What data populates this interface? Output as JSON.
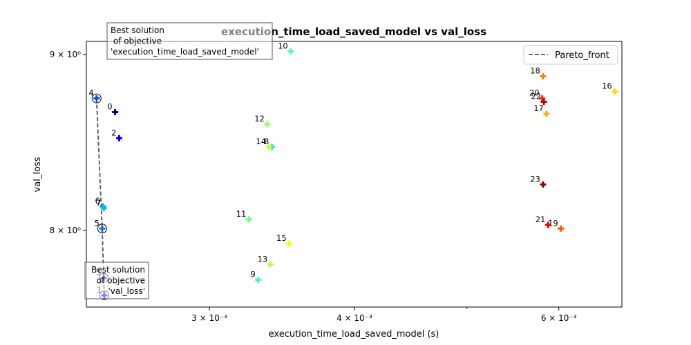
{
  "chart_data": {
    "type": "scatter",
    "title": "execution_time_load_saved_model vs val_loss",
    "xlabel": "execution_time_load_saved_model (s)",
    "ylabel": "val_loss",
    "xscale": "log",
    "yscale": "log",
    "xlim": [
      0.00235,
      0.0068
    ],
    "ylim": [
      7.6,
      9.08
    ],
    "x_ticks": [
      {
        "value": 0.003,
        "label": "3 × 10⁻³"
      },
      {
        "value": 0.004,
        "label": "4 × 10⁻³"
      },
      {
        "value": 0.006,
        "label": "6 × 10⁻³"
      }
    ],
    "x_minor_ticks": [
      0.005
    ],
    "y_ticks": [
      {
        "value": 8.0,
        "label": "8 × 10⁰"
      },
      {
        "value": 9.0,
        "label": "9 × 10⁰"
      }
    ],
    "colormap": "jet",
    "points": [
      {
        "id": "0",
        "x": 0.002488,
        "y": 8.66
      },
      {
        "id": "1",
        "x": 0.002435,
        "y": 7.66
      },
      {
        "id": "2",
        "x": 0.002508,
        "y": 8.51
      },
      {
        "id": "3",
        "x": 0.002432,
        "y": 7.75
      },
      {
        "id": "4",
        "x": 0.002398,
        "y": 8.74
      },
      {
        "id": "5",
        "x": 0.002425,
        "y": 8.01
      },
      {
        "id": "6",
        "x": 0.002428,
        "y": 8.13
      },
      {
        "id": "7",
        "x": 0.002433,
        "y": 8.12
      },
      {
        "id": "8",
        "x": 0.003395,
        "y": 8.46
      },
      {
        "id": "9",
        "x": 0.003305,
        "y": 7.74
      },
      {
        "id": "10",
        "x": 0.003525,
        "y": 9.02
      },
      {
        "id": "11",
        "x": 0.003245,
        "y": 8.06
      },
      {
        "id": "12",
        "x": 0.003365,
        "y": 8.59
      },
      {
        "id": "13",
        "x": 0.003385,
        "y": 7.82
      },
      {
        "id": "14",
        "x": 0.003375,
        "y": 8.46
      },
      {
        "id": "15",
        "x": 0.003515,
        "y": 7.93
      },
      {
        "id": "16",
        "x": 0.006705,
        "y": 8.78
      },
      {
        "id": "17",
        "x": 0.005855,
        "y": 8.65
      },
      {
        "id": "18",
        "x": 0.005815,
        "y": 8.87
      },
      {
        "id": "19",
        "x": 0.006025,
        "y": 8.01
      },
      {
        "id": "20",
        "x": 0.005805,
        "y": 8.74
      },
      {
        "id": "21",
        "x": 0.005875,
        "y": 8.03
      },
      {
        "id": "22",
        "x": 0.005825,
        "y": 8.72
      },
      {
        "id": "23",
        "x": 0.005815,
        "y": 8.25
      }
    ],
    "point_colors": [
      "#00008f",
      "#0000ff",
      "#0000d0",
      "#0020ff",
      "#0048ff",
      "#0070ff",
      "#0098ff",
      "#00c0ff",
      "#10e8e8",
      "#30ffc8",
      "#50ffa8",
      "#70ff88",
      "#90ff68",
      "#b0ff48",
      "#d0ff28",
      "#f0ff08",
      "#ffd800",
      "#ffa800",
      "#ff8000",
      "#ff5800",
      "#ff3000",
      "#e80000",
      "#c00000",
      "#8f0000"
    ],
    "pareto_front": {
      "name": "Pareto_front",
      "points": [
        [
          0.002398,
          8.74
        ],
        [
          0.002425,
          8.01
        ],
        [
          0.002432,
          7.75
        ],
        [
          0.002435,
          7.66
        ]
      ]
    },
    "highlighted": [
      "4",
      "5",
      "3",
      "1"
    ],
    "legend": {
      "placement": "top-right",
      "entries": [
        "Pareto_front"
      ]
    },
    "annotations": [
      {
        "text_lines": [
          "Best solution",
          " of objective",
          "'execution_time_load_saved_model'"
        ],
        "target": "4",
        "align": "left"
      },
      {
        "text_lines": [
          "Best solution",
          "of objective",
          "'val_loss'"
        ],
        "target": "1",
        "align": "right"
      }
    ],
    "grid": false
  }
}
